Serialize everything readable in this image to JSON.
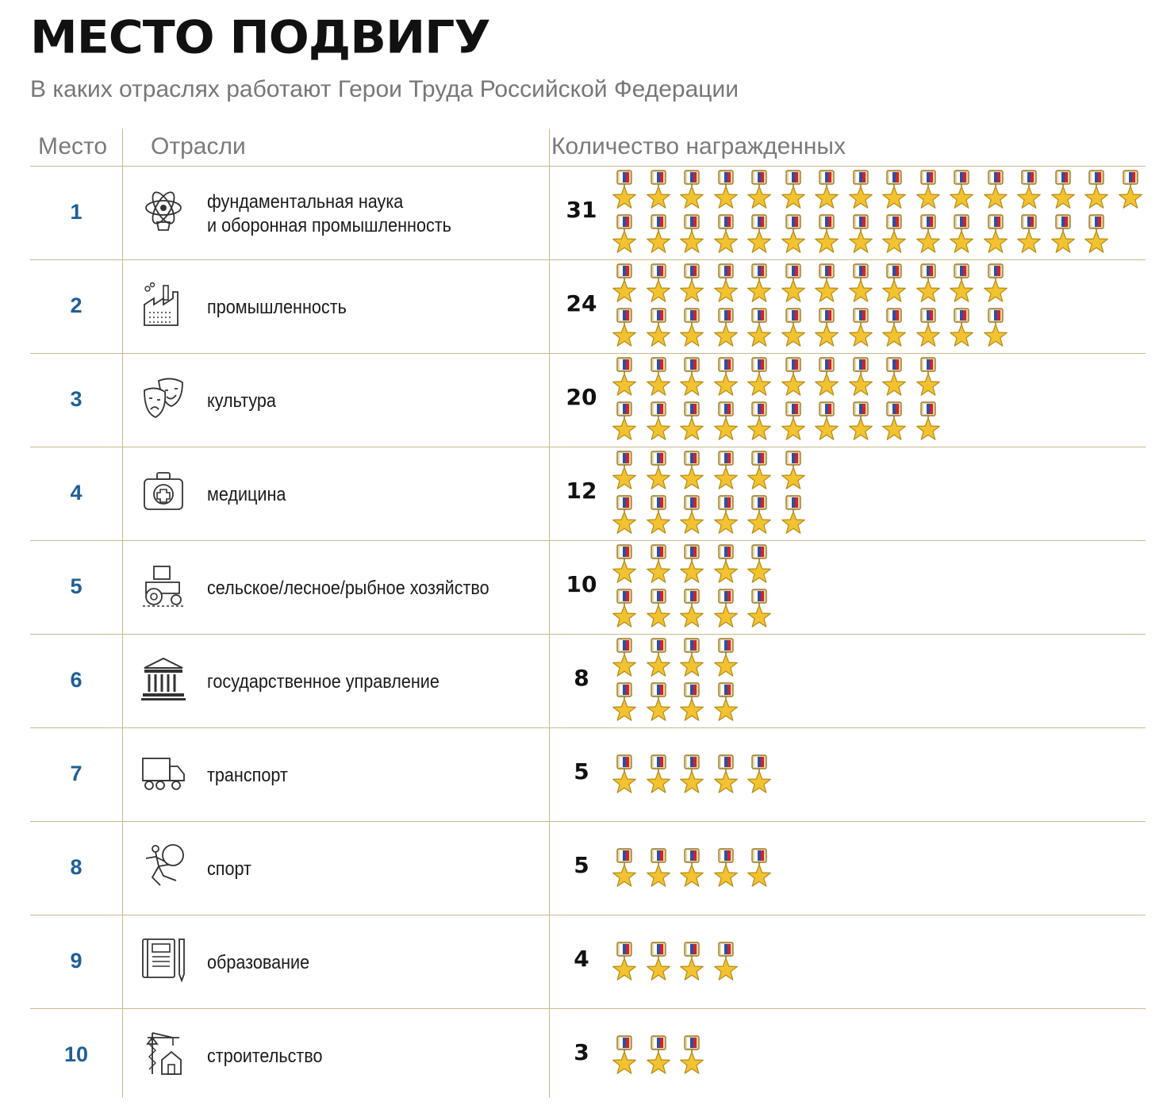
{
  "title": "МЕСТО ПОДВИГУ",
  "subtitle": "В каких отраслях работают Герои Труда Российской Федерации",
  "columns": {
    "rank": "Место",
    "sector": "Отрасли",
    "count": "Количество награжденных"
  },
  "colors": {
    "rank_text": "#1e5f96",
    "rule": "#c9b98f",
    "star_fill": "#f2c230",
    "star_stroke": "#b58a12",
    "flag_white": "#ffffff",
    "flag_blue": "#2a4fa5",
    "flag_red": "#d2232a"
  },
  "chart_data": {
    "type": "table",
    "title": "МЕСТО ПОДВИГУ",
    "subtitle": "В каких отраслях работают Герои Труда Российской Федерации",
    "rows": [
      {
        "rank": "1",
        "icon": "atom-icon",
        "sector_lines": [
          "фундаментальная наука",
          "и оборонная промышленность"
        ],
        "count": 31
      },
      {
        "rank": "2",
        "icon": "factory-icon",
        "sector_lines": [
          "промышленность"
        ],
        "count": 24
      },
      {
        "rank": "3",
        "icon": "theatre-masks-icon",
        "sector_lines": [
          "культура"
        ],
        "count": 20
      },
      {
        "rank": "4",
        "icon": "first-aid-kit-icon",
        "sector_lines": [
          "медицина"
        ],
        "count": 12
      },
      {
        "rank": "5",
        "icon": "tractor-icon",
        "sector_lines": [
          "сельское/лесное/рыбное хозяйство"
        ],
        "count": 10
      },
      {
        "rank": "6",
        "icon": "government-building-icon",
        "sector_lines": [
          "государственное управление"
        ],
        "count": 8
      },
      {
        "rank": "7",
        "icon": "truck-icon",
        "sector_lines": [
          "транспорт"
        ],
        "count": 5
      },
      {
        "rank": "8",
        "icon": "athlete-icon",
        "sector_lines": [
          "спорт"
        ],
        "count": 5
      },
      {
        "rank": "9",
        "icon": "book-pencil-icon",
        "sector_lines": [
          "образование"
        ],
        "count": 4
      },
      {
        "rank": "10",
        "icon": "crane-house-icon",
        "sector_lines": [
          "строительство"
        ],
        "count": 3
      }
    ]
  }
}
